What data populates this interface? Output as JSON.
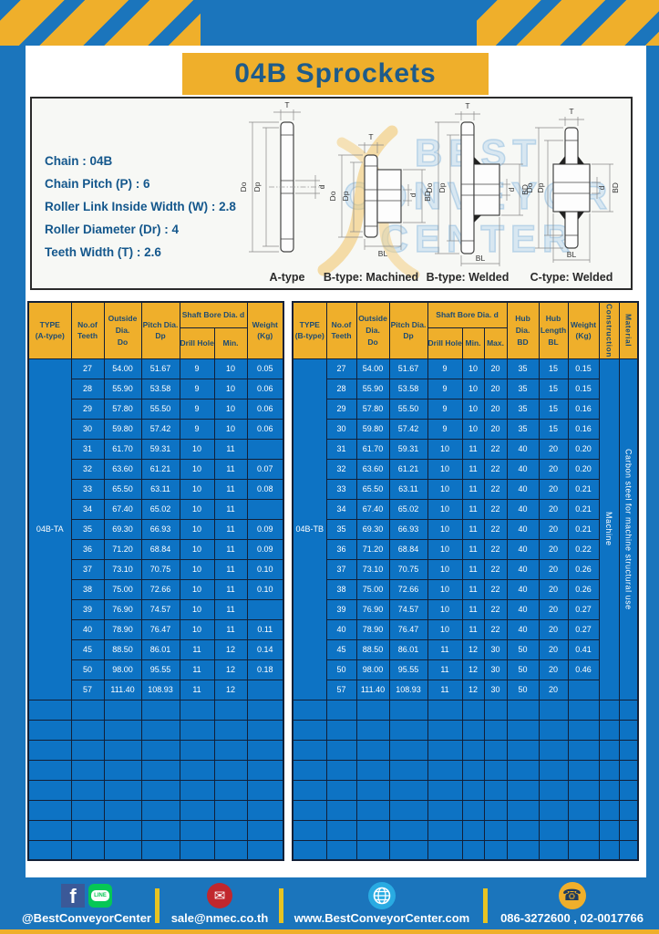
{
  "title": "04B Sprockets",
  "colors": {
    "blue": "#1b75bc",
    "yellow": "#efaf2b",
    "table_blue": "#0d73c4",
    "header_text": "#1d4b72",
    "spec_text": "#14578c"
  },
  "specs": {
    "lines": [
      "Chain : 04B",
      "Chain Pitch (P) : 6",
      "Roller Link Inside Width (W) : 2.8",
      "Roller Diameter (Dr) : 4",
      "Teeth Width (T) : 2.6"
    ]
  },
  "watermark": {
    "line1": "BEST",
    "line2": "CONVEYOR",
    "line3": "CENTER"
  },
  "diagrams": {
    "dims": {
      "t": "T",
      "dd": "Do",
      "dp": "Dp",
      "d": "d",
      "bd": "BD",
      "bl": "BL"
    },
    "captions": {
      "a": "A-type",
      "bm": "B-type: Machined",
      "bw": "B-type: Welded",
      "cw": "C-type: Welded"
    }
  },
  "table_a": {
    "h": {
      "type1": "TYPE",
      "type2": "(A-type)",
      "teeth1": "No.of",
      "teeth2": "Teeth",
      "out1": "Outside",
      "out2": "Dia.",
      "out3": "Do",
      "pitch1": "Pitch Dia.",
      "pitch2": "Dp",
      "shaft": "Shaft Bore Dia. d",
      "drill": "Drill Hole",
      "min": "Min.",
      "w1": "Weight",
      "w2": "(Kg)"
    },
    "type_label": "04B-TA",
    "empty_rows": 8,
    "rows": [
      [
        "27",
        "54.00",
        "51.67",
        "9",
        "10",
        "0.05"
      ],
      [
        "28",
        "55.90",
        "53.58",
        "9",
        "10",
        "0.06"
      ],
      [
        "29",
        "57.80",
        "55.50",
        "9",
        "10",
        "0.06"
      ],
      [
        "30",
        "59.80",
        "57.42",
        "9",
        "10",
        "0.06"
      ],
      [
        "31",
        "61.70",
        "59.31",
        "10",
        "11",
        ""
      ],
      [
        "32",
        "63.60",
        "61.21",
        "10",
        "11",
        "0.07"
      ],
      [
        "33",
        "65.50",
        "63.11",
        "10",
        "11",
        "0.08"
      ],
      [
        "34",
        "67.40",
        "65.02",
        "10",
        "11",
        ""
      ],
      [
        "35",
        "69.30",
        "66.93",
        "10",
        "11",
        "0.09"
      ],
      [
        "36",
        "71.20",
        "68.84",
        "10",
        "11",
        "0.09"
      ],
      [
        "37",
        "73.10",
        "70.75",
        "10",
        "11",
        "0.10"
      ],
      [
        "38",
        "75.00",
        "72.66",
        "10",
        "11",
        "0.10"
      ],
      [
        "39",
        "76.90",
        "74.57",
        "10",
        "11",
        ""
      ],
      [
        "40",
        "78.90",
        "76.47",
        "10",
        "11",
        "0.11"
      ],
      [
        "45",
        "88.50",
        "86.01",
        "11",
        "12",
        "0.14"
      ],
      [
        "50",
        "98.00",
        "95.55",
        "11",
        "12",
        "0.18"
      ],
      [
        "57",
        "111.40",
        "108.93",
        "11",
        "12",
        ""
      ]
    ]
  },
  "table_b": {
    "h": {
      "type1": "TYPE",
      "type2": "(B-type)",
      "teeth1": "No.of",
      "teeth2": "Teeth",
      "out1": "Outside",
      "out2": "Dia.",
      "out3": "Do",
      "pitch1": "Pitch Dia.",
      "pitch2": "Dp",
      "shaft": "Shaft Bore Dia. d",
      "drill": "Drill Hole",
      "min": "Min.",
      "max": "Max.",
      "hubdia1": "Hub Dia.",
      "hubdia2": "BD",
      "hublen1": "Hub",
      "hublen2": "Length",
      "hublen3": "BL",
      "w1": "Weight",
      "w2": "(Kg)",
      "construction": "Construction",
      "material": "Material"
    },
    "type_label": "04B-TB",
    "construction": "Machine",
    "material": "Carbon steel for machine structural use",
    "empty_rows": 8,
    "rows": [
      [
        "27",
        "54.00",
        "51.67",
        "9",
        "10",
        "20",
        "35",
        "15",
        "0.15"
      ],
      [
        "28",
        "55.90",
        "53.58",
        "9",
        "10",
        "20",
        "35",
        "15",
        "0.15"
      ],
      [
        "29",
        "57.80",
        "55.50",
        "9",
        "10",
        "20",
        "35",
        "15",
        "0.16"
      ],
      [
        "30",
        "59.80",
        "57.42",
        "9",
        "10",
        "20",
        "35",
        "15",
        "0.16"
      ],
      [
        "31",
        "61.70",
        "59.31",
        "10",
        "11",
        "22",
        "40",
        "20",
        "0.20"
      ],
      [
        "32",
        "63.60",
        "61.21",
        "10",
        "11",
        "22",
        "40",
        "20",
        "0.20"
      ],
      [
        "33",
        "65.50",
        "63.11",
        "10",
        "11",
        "22",
        "40",
        "20",
        "0.21"
      ],
      [
        "34",
        "67.40",
        "65.02",
        "10",
        "11",
        "22",
        "40",
        "20",
        "0.21"
      ],
      [
        "35",
        "69.30",
        "66.93",
        "10",
        "11",
        "22",
        "40",
        "20",
        "0.21"
      ],
      [
        "36",
        "71.20",
        "68.84",
        "10",
        "11",
        "22",
        "40",
        "20",
        "0.22"
      ],
      [
        "37",
        "73.10",
        "70.75",
        "10",
        "11",
        "22",
        "40",
        "20",
        "0.26"
      ],
      [
        "38",
        "75.00",
        "72.66",
        "10",
        "11",
        "22",
        "40",
        "20",
        "0.26"
      ],
      [
        "39",
        "76.90",
        "74.57",
        "10",
        "11",
        "22",
        "40",
        "20",
        "0.27"
      ],
      [
        "40",
        "78.90",
        "76.47",
        "10",
        "11",
        "22",
        "40",
        "20",
        "0.27"
      ],
      [
        "45",
        "88.50",
        "86.01",
        "11",
        "12",
        "30",
        "50",
        "20",
        "0.41"
      ],
      [
        "50",
        "98.00",
        "95.55",
        "11",
        "12",
        "30",
        "50",
        "20",
        "0.46"
      ],
      [
        "57",
        "111.40",
        "108.93",
        "11",
        "12",
        "30",
        "50",
        "20",
        ""
      ]
    ]
  },
  "footer": {
    "sections": [
      {
        "label": "@BestConveyorCenter"
      },
      {
        "label": "sale@nmec.co.th"
      },
      {
        "label": "www.BestConveyorCenter.com"
      },
      {
        "label": "086-3272600 , 02-0017766"
      }
    ]
  }
}
